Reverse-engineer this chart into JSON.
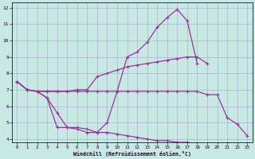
{
  "xlabel": "Windchill (Refroidissement éolien,°C)",
  "xlim": [
    -0.5,
    23.5
  ],
  "ylim": [
    3.8,
    12.3
  ],
  "xticks": [
    0,
    1,
    2,
    3,
    4,
    5,
    6,
    7,
    8,
    9,
    10,
    11,
    12,
    13,
    14,
    15,
    16,
    17,
    18,
    19,
    20,
    21,
    22,
    23
  ],
  "yticks": [
    4,
    5,
    6,
    7,
    8,
    9,
    10,
    11,
    12
  ],
  "bg_color": "#c8e8e4",
  "line_color": "#993399",
  "grid_color": "#9999bb",
  "curve_bell": {
    "x": [
      0,
      1,
      2,
      3,
      4,
      5,
      6,
      7,
      8,
      9,
      10,
      11,
      12,
      13,
      14,
      15,
      16,
      17,
      18
    ],
    "y": [
      7.5,
      7.0,
      6.9,
      6.5,
      4.7,
      4.7,
      4.6,
      4.4,
      4.4,
      5.0,
      6.9,
      9.0,
      9.3,
      9.9,
      10.8,
      11.4,
      11.9,
      11.2,
      8.6
    ]
  },
  "curve_diag_up": {
    "x": [
      0,
      1,
      2,
      3,
      4,
      5,
      6,
      7,
      8,
      9,
      10,
      11,
      12,
      13,
      14,
      15,
      16,
      17,
      18,
      19
    ],
    "y": [
      7.5,
      7.0,
      6.9,
      6.9,
      6.9,
      6.9,
      7.0,
      7.0,
      7.8,
      8.0,
      8.2,
      8.4,
      8.5,
      8.6,
      8.7,
      8.8,
      8.9,
      9.0,
      9.0,
      8.6
    ]
  },
  "curve_flat": {
    "x": [
      0,
      1,
      2,
      3,
      4,
      5,
      6,
      7,
      8,
      9,
      10,
      11,
      12,
      13,
      14,
      15,
      16,
      17,
      18,
      19,
      20,
      21,
      22,
      23
    ],
    "y": [
      7.5,
      7.0,
      6.9,
      6.9,
      6.9,
      6.9,
      6.9,
      6.9,
      6.9,
      6.9,
      6.9,
      6.9,
      6.9,
      6.9,
      6.9,
      6.9,
      6.9,
      6.9,
      6.9,
      6.7,
      6.7,
      5.3,
      4.9,
      4.2
    ]
  },
  "curve_decline": {
    "x": [
      0,
      1,
      2,
      3,
      4,
      5,
      6,
      7,
      8,
      9,
      10,
      11,
      12,
      13,
      14,
      15,
      16,
      17,
      18,
      19,
      20,
      21,
      22,
      23
    ],
    "y": [
      7.5,
      7.0,
      6.9,
      6.5,
      5.6,
      4.7,
      4.7,
      4.6,
      4.4,
      4.4,
      4.3,
      4.2,
      4.1,
      4.0,
      3.9,
      3.9,
      3.8,
      3.8,
      3.7,
      3.7,
      3.7,
      3.7,
      3.7,
      3.7
    ]
  },
  "marker": "+",
  "markersize": 3.5,
  "linewidth": 0.9
}
